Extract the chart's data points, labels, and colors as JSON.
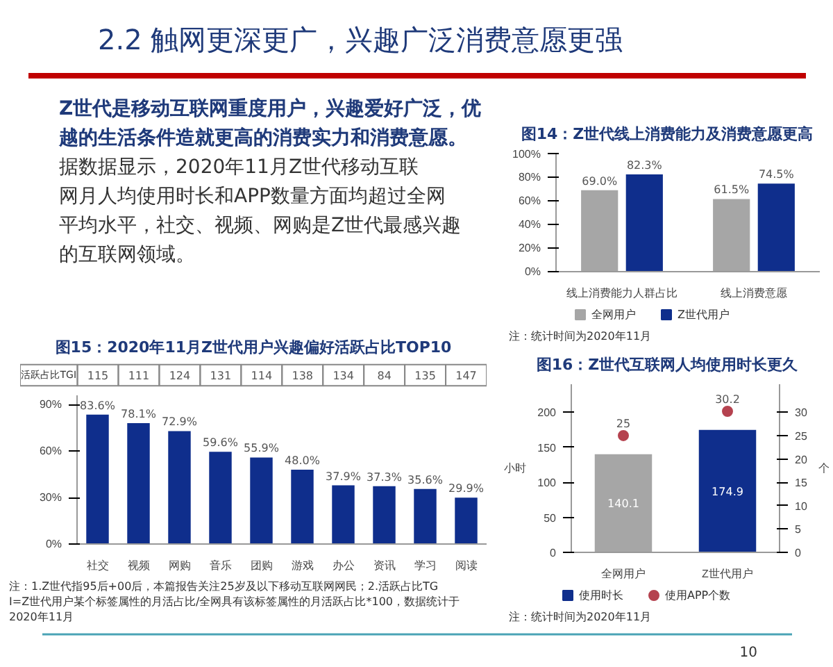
{
  "chart_data": [
    {
      "type": "other",
      "title": "2.2 触网更深更广，兴趣广泛消费意愿更强",
      "annotations": [
        "Z世代是移动互联网重度用户，兴趣爱好广泛，优越的生活条件造就更高的消费实力和消费意愿。",
        "据数据显示，2020年11月Z世代移动互联网月人均使用时长和APP数量方面均超过全网平均水平，社交、视频、网购是Z世代最感兴趣的互联网领域。",
        "10"
      ]
    },
    {
      "type": "bar",
      "title": "图14：Z世代线上消费能力及消费意愿更高",
      "categories": [
        "线上消费能力人群占比",
        "线上消费意愿"
      ],
      "series": [
        {
          "name": "全网用户",
          "color": "#a6a6a6",
          "values": [
            69.0,
            61.5
          ],
          "value_labels": [
            "69.0%",
            "61.5%"
          ]
        },
        {
          "name": "Z世代用户",
          "color": "#0f2e8c",
          "values": [
            82.3,
            74.5
          ],
          "value_labels": [
            "82.3%",
            "74.5%"
          ]
        }
      ],
      "ylim": [
        0,
        100
      ],
      "yticks": [
        {
          "value": 0,
          "label": "0%"
        },
        {
          "value": 20,
          "label": "20%"
        },
        {
          "value": 40,
          "label": "40%"
        },
        {
          "value": 60,
          "label": "60%"
        },
        {
          "value": 80,
          "label": "80%"
        },
        {
          "value": 100,
          "label": "100%"
        }
      ],
      "legend": "bottom",
      "annotations": [
        "注：统计时间为2020年11月"
      ]
    },
    {
      "type": "bar",
      "title": "图15：2020年11月Z世代用户兴趣偏好活跃占比TOP10",
      "categories": [
        "社交",
        "视频",
        "网购",
        "音乐",
        "团购",
        "游戏",
        "办公",
        "资讯",
        "学习",
        "阅读"
      ],
      "values": [
        83.6,
        78.1,
        72.9,
        59.6,
        55.9,
        48.0,
        37.9,
        37.3,
        35.6,
        29.9
      ],
      "color": "#0f2e8c",
      "value_labels": [
        "83.6%",
        "78.1%",
        "72.9%",
        "59.6%",
        "55.9%",
        "48.0%",
        "37.9%",
        "37.3%",
        "35.6%",
        "29.9%"
      ],
      "ylim": [
        0,
        96
      ],
      "yticks": [
        {
          "value": 0,
          "label": "0%"
        },
        {
          "value": 30,
          "label": "30%"
        },
        {
          "value": 60,
          "label": "60%"
        },
        {
          "value": 90,
          "label": "90%"
        }
      ],
      "annotations": [
        "活跃占比TGI",
        "115",
        "111",
        "124",
        "131",
        "114",
        "138",
        "134",
        "84",
        "135",
        "147",
        "注：1.Z世代指95后+00后，本篇报告关注25岁及以下移动互联网网民；2.活跃占比TGI=Z世代用户某个标签属性的月活占比/全网具有该标签属性的月活跃占比*100，数据统计于2020年11月"
      ]
    },
    {
      "type": "bar",
      "title": "图16：Z世代互联网人均使用时长更久",
      "categories": [
        "全网用户",
        "Z世代用户"
      ],
      "series": [
        {
          "name": "使用时长",
          "color": "#0f2e8c",
          "colors": [
            "#a6a6a6",
            "#0f2e8c"
          ],
          "values": [
            140.1,
            174.9
          ]
        },
        {
          "name": "使用APP个数",
          "type": "scatter",
          "axis": "y2",
          "marker": "circle",
          "color": "#b5424f",
          "values": [
            25,
            30.2
          ]
        }
      ],
      "ylim": [
        0,
        240
      ],
      "yticks": [
        0,
        50,
        100,
        150,
        200
      ],
      "y2lim": [
        0,
        36
      ],
      "y2ticks": [
        0,
        5,
        10,
        15,
        20,
        25,
        30
      ],
      "ylabel": "小时",
      "y2label": "个",
      "data_labels": true,
      "legend": "bottom",
      "annotations": [
        "注：统计时间为2020年11月"
      ]
    }
  ]
}
